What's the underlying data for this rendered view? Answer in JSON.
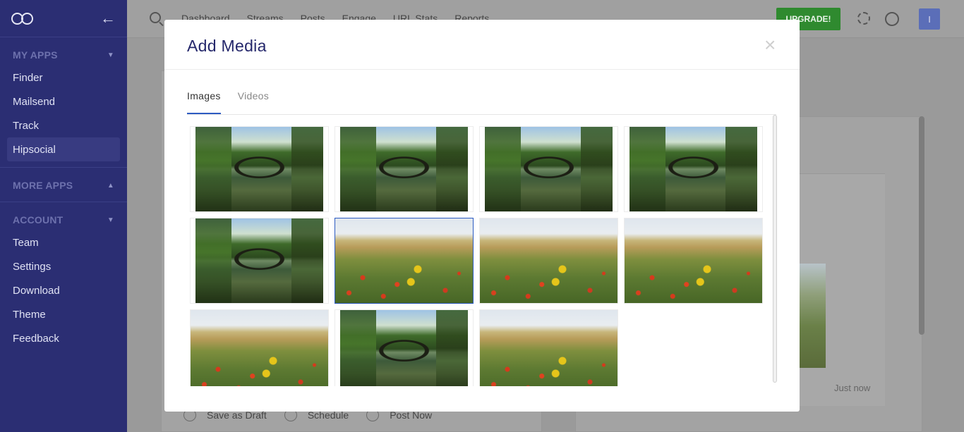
{
  "sidebar": {
    "sections": [
      {
        "title": "MY APPS",
        "chevron": "chevron-down-icon",
        "items": [
          "Finder",
          "Mailsend",
          "Track",
          "Hipsocial"
        ],
        "active": "Hipsocial"
      },
      {
        "title": "MORE APPS",
        "chevron": "chevron-up-icon",
        "items": []
      },
      {
        "title": "ACCOUNT",
        "chevron": "chevron-down-icon",
        "items": [
          "Team",
          "Settings",
          "Download",
          "Theme",
          "Feedback"
        ]
      }
    ]
  },
  "topbar": {
    "nav": [
      "Dashboard",
      "Streams",
      "Posts",
      "Engage",
      "URL Stats",
      "Reports"
    ],
    "upgrade_label": "UPGRADE!",
    "avatar_initial": "I"
  },
  "background": {
    "timestamp": "Just now",
    "post_options": [
      "Save as Draft",
      "Schedule",
      "Post Now"
    ]
  },
  "modal": {
    "title": "Add Media",
    "close_glyph": "×",
    "tabs": [
      {
        "label": "Images",
        "active": true
      },
      {
        "label": "Videos",
        "active": false
      }
    ],
    "images": [
      {
        "kind": "bridge"
      },
      {
        "kind": "bridge"
      },
      {
        "kind": "bridge"
      },
      {
        "kind": "bridge"
      },
      {
        "kind": "bridge"
      },
      {
        "kind": "flowers",
        "selected": true
      },
      {
        "kind": "flowers"
      },
      {
        "kind": "flowers"
      },
      {
        "kind": "flowers"
      },
      {
        "kind": "bridge"
      },
      {
        "kind": "flowers"
      }
    ]
  },
  "colors": {
    "sidebar": "#2b2e73",
    "accent": "#2d5bc2",
    "upgrade": "#2f8a2f",
    "title": "#24276b"
  }
}
